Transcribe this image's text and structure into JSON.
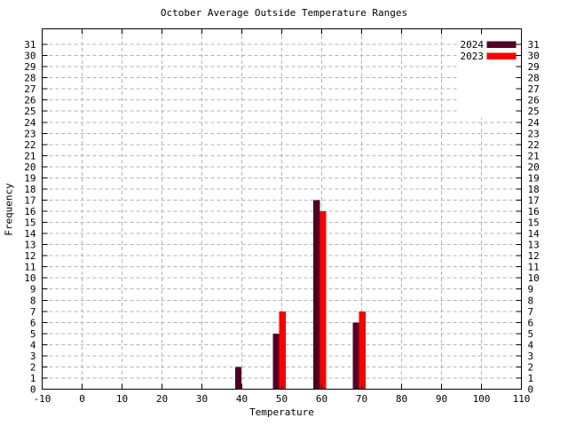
{
  "window": {
    "background": "#ffffff"
  },
  "chart_data": {
    "type": "bar",
    "title": "October Average Outside Temperature Ranges",
    "xlabel": "Temperature",
    "ylabel": "Frequency",
    "xlim": [
      -10,
      110
    ],
    "ylim": [
      0,
      32.4
    ],
    "x_tick_labels": [
      "-10",
      "0",
      "10",
      "20",
      "30",
      "40",
      "50",
      "60",
      "70",
      "80",
      "90",
      "100",
      "110"
    ],
    "y_tick_labels": [
      "0",
      "1",
      "2",
      "3",
      "4",
      "5",
      "6",
      "7",
      "8",
      "9",
      "10",
      "11",
      "12",
      "13",
      "14",
      "15",
      "16",
      "17",
      "18",
      "19",
      "20",
      "21",
      "22",
      "23",
      "24",
      "25",
      "26",
      "27",
      "28",
      "29",
      "30",
      "31"
    ],
    "y_axis_mirrored": true,
    "x_axis_mirrored_ticks": true,
    "grid": true,
    "grid_color": "#b3b3b3",
    "axis_color": "#000000",
    "text_color": "#000000",
    "background": "#ffffff",
    "legend_position": "top-right",
    "bar_width": 1.6,
    "group_centers": [
      39.9,
      49.35,
      59.5,
      69.35
    ],
    "series": [
      {
        "name": "2024",
        "color": "#530029",
        "values": [
          2,
          5,
          17,
          6
        ]
      },
      {
        "name": "2023",
        "color": "#ff0000",
        "values": [
          0,
          7,
          16,
          7
        ]
      }
    ]
  }
}
